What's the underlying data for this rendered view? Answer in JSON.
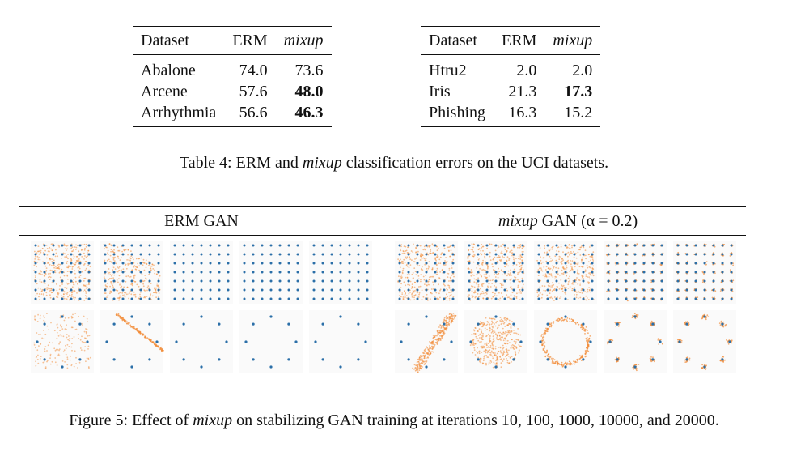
{
  "table_left": {
    "headers": [
      "Dataset",
      "ERM",
      "mixup"
    ],
    "rows": [
      {
        "dataset": "Abalone",
        "erm": "74.0",
        "mixup": "73.6",
        "bold": false
      },
      {
        "dataset": "Arcene",
        "erm": "57.6",
        "mixup": "48.0",
        "bold": true
      },
      {
        "dataset": "Arrhythmia",
        "erm": "56.6",
        "mixup": "46.3",
        "bold": true
      }
    ]
  },
  "table_right": {
    "headers": [
      "Dataset",
      "ERM",
      "mixup"
    ],
    "rows": [
      {
        "dataset": "Htru2",
        "erm": "2.0",
        "mixup": "2.0",
        "bold": false
      },
      {
        "dataset": "Iris",
        "erm": "21.3",
        "mixup": "17.3",
        "bold": true
      },
      {
        "dataset": "Phishing",
        "erm": "16.3",
        "mixup": "15.2",
        "bold": false
      }
    ]
  },
  "table_caption": {
    "prefix": "Table 4: ERM and ",
    "em": "mixup",
    "suffix": " classification errors on the UCI datasets."
  },
  "figure": {
    "erm_header": "ERM GAN",
    "mixup_header_em": "mixup",
    "mixup_header_rest": " GAN (α = 0.2)",
    "colors": {
      "target": "#2b6fa8",
      "generated": "#f28c38"
    }
  },
  "figure_caption": {
    "prefix": "Figure 5: Effect of ",
    "em": "mixup",
    "suffix": " on stabilizing GAN training at iterations 10, 100, 1000, 10000, and 20000."
  }
}
